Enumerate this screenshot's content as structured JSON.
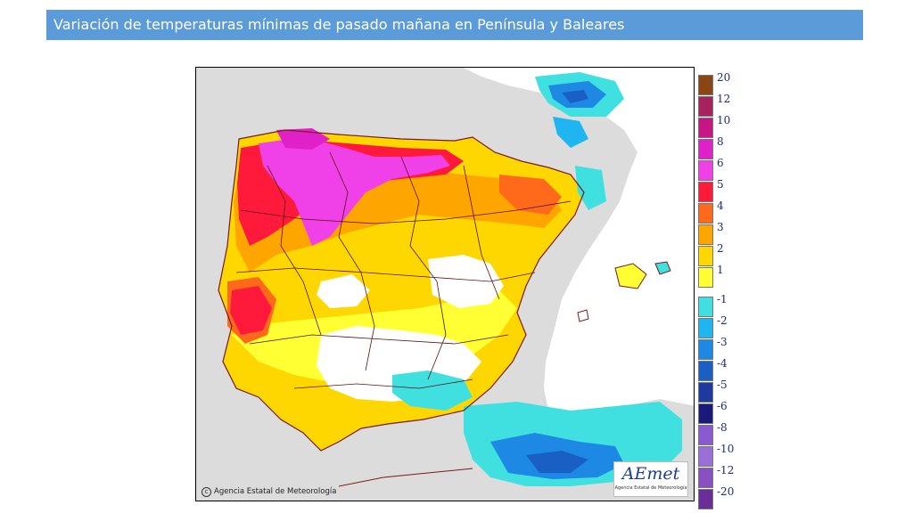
{
  "header": {
    "title": "Variación de temperaturas mínimas de pasado mañana en Península y Baleares"
  },
  "map": {
    "credit_text": "Agencia Estatal de Meteorología",
    "logo_text": "AEmet",
    "logo_subtext": "Agencia Estatal de Meteorología",
    "land_background_color": "#dcdcdc",
    "sea_background_color": "#ffffff"
  },
  "legend": {
    "entries": [
      {
        "label": "20",
        "color": "#8b4513"
      },
      {
        "label": "12",
        "color": "#a8235e"
      },
      {
        "label": "10",
        "color": "#c71585"
      },
      {
        "label": "8",
        "color": "#e020c8"
      },
      {
        "label": "6",
        "color": "#f040e8"
      },
      {
        "label": "5",
        "color": "#ff1a3c"
      },
      {
        "label": "4",
        "color": "#ff6a1a"
      },
      {
        "label": "3",
        "color": "#ffa500"
      },
      {
        "label": "2",
        "color": "#ffd700"
      },
      {
        "label": "1",
        "color": "#ffff33"
      },
      {
        "label": "-1",
        "color": "#40e0e0"
      },
      {
        "label": "-2",
        "color": "#1fb5f0"
      },
      {
        "label": "-3",
        "color": "#1e88e5"
      },
      {
        "label": "-4",
        "color": "#1a5fc4"
      },
      {
        "label": "-5",
        "color": "#1c3aa0"
      },
      {
        "label": "-6",
        "color": "#1a1a7a"
      },
      {
        "label": "-8",
        "color": "#8a5ad0"
      },
      {
        "label": "-10",
        "color": "#9b6fd8"
      },
      {
        "label": "-12",
        "color": "#8a4fc0"
      },
      {
        "label": "-20",
        "color": "#6a2e9a"
      }
    ]
  }
}
